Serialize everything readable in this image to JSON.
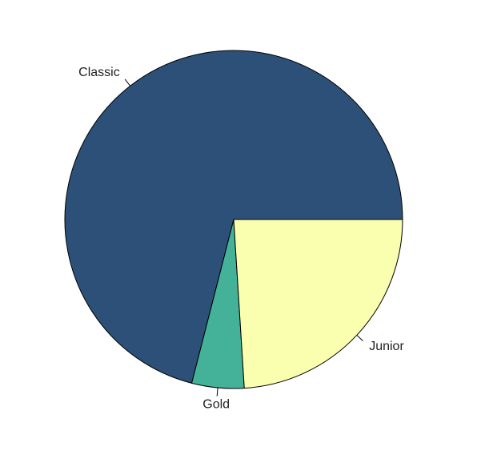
{
  "chart_data": {
    "type": "pie",
    "labels": [
      "Classic",
      "Gold",
      "Junior"
    ],
    "values": [
      71,
      5,
      24
    ],
    "colors": [
      "#2d5078",
      "#44b299",
      "#fafeaf"
    ],
    "start_angle_deg": 0,
    "direction": "counterclockwise",
    "title": ""
  }
}
